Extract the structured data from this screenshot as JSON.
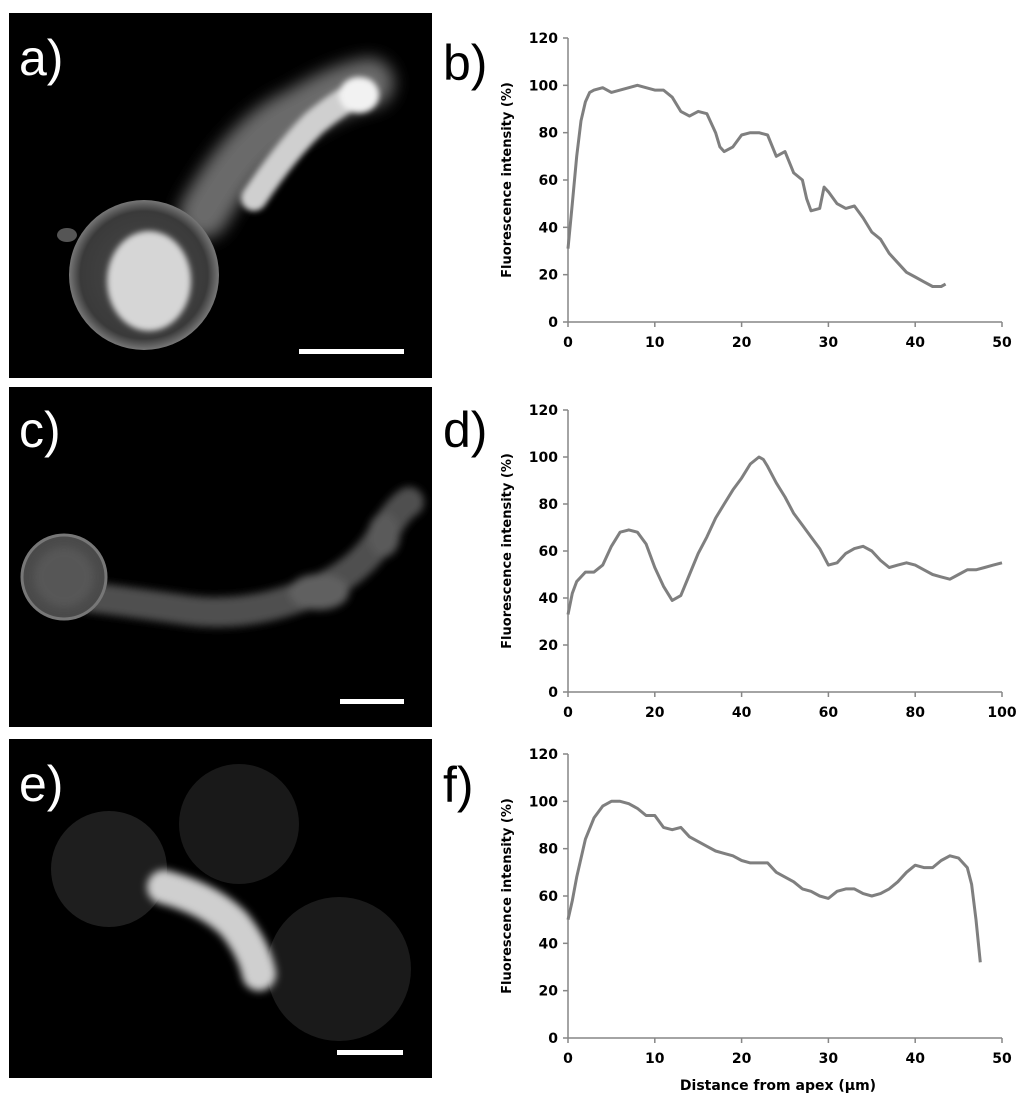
{
  "panels": [
    {
      "label": "a)"
    },
    {
      "label": "b)"
    },
    {
      "label": "c)"
    },
    {
      "label": "d)"
    },
    {
      "label": "e)"
    },
    {
      "label": "f)"
    }
  ],
  "colors": {
    "line": "#7f7f7f",
    "axis": "#868686",
    "image_bg": "#000000"
  },
  "chart_data": [
    {
      "panel": "b)",
      "type": "line",
      "xlabel": "",
      "ylabel": "Fluorescence intensity (%)",
      "xlim": [
        0,
        50
      ],
      "ylim": [
        0,
        120
      ],
      "xticks": [
        "0",
        "10",
        "20",
        "30",
        "40",
        "50"
      ],
      "yticks": [
        "0",
        "20",
        "40",
        "60",
        "80",
        "100",
        "120"
      ],
      "grid": false,
      "series": [
        {
          "x": [
            0,
            0.5,
            1,
            1.5,
            2,
            2.5,
            3,
            4,
            5,
            6,
            7,
            8,
            9,
            10,
            11,
            12,
            13,
            14,
            15,
            16,
            17,
            17.5,
            18,
            19,
            20,
            21,
            22,
            23,
            24,
            25,
            26,
            27,
            27.5,
            28,
            29,
            29.5,
            30,
            31,
            32,
            33,
            34,
            35,
            36,
            37,
            38,
            39,
            40,
            41,
            42,
            43,
            43.5
          ],
          "y": [
            31,
            50,
            70,
            85,
            93,
            97,
            98,
            99,
            97,
            98,
            99,
            100,
            99,
            98,
            98,
            95,
            89,
            87,
            89,
            88,
            80,
            74,
            72,
            74,
            79,
            80,
            80,
            79,
            70,
            72,
            63,
            60,
            52,
            47,
            48,
            57,
            55,
            50,
            48,
            49,
            44,
            38,
            35,
            29,
            25,
            21,
            19,
            17,
            15,
            15,
            16
          ]
        }
      ]
    },
    {
      "panel": "d)",
      "type": "line",
      "xlabel": "",
      "ylabel": "Fluorescence intensity (%)",
      "xlim": [
        0,
        100
      ],
      "ylim": [
        0,
        120
      ],
      "xticks": [
        "0",
        "20",
        "40",
        "60",
        "80",
        "100"
      ],
      "yticks": [
        "0",
        "20",
        "40",
        "60",
        "80",
        "100",
        "120"
      ],
      "grid": false,
      "series": [
        {
          "x": [
            0,
            1,
            2,
            4,
            6,
            8,
            10,
            12,
            14,
            16,
            18,
            20,
            22,
            24,
            26,
            28,
            30,
            32,
            34,
            36,
            38,
            40,
            42,
            44,
            45,
            46,
            48,
            50,
            52,
            54,
            56,
            58,
            60,
            62,
            64,
            66,
            68,
            70,
            72,
            74,
            76,
            78,
            80,
            82,
            84,
            86,
            88,
            90,
            92,
            94,
            96,
            98,
            100
          ],
          "y": [
            33,
            42,
            47,
            51,
            51,
            54,
            62,
            68,
            69,
            68,
            63,
            53,
            45,
            39,
            41,
            50,
            59,
            66,
            74,
            80,
            86,
            91,
            97,
            100,
            99,
            96,
            89,
            83,
            76,
            71,
            66,
            61,
            54,
            55,
            59,
            61,
            62,
            60,
            56,
            53,
            54,
            55,
            54,
            52,
            50,
            49,
            48,
            50,
            52,
            52,
            53,
            54,
            55
          ]
        }
      ]
    },
    {
      "panel": "f)",
      "type": "line",
      "xlabel": "Distance from apex (µm)",
      "ylabel": "Fluorescence intensity (%)",
      "xlim": [
        0,
        50
      ],
      "ylim": [
        0,
        120
      ],
      "xticks": [
        "0",
        "10",
        "20",
        "30",
        "40",
        "50"
      ],
      "yticks": [
        "0",
        "20",
        "40",
        "60",
        "80",
        "100",
        "120"
      ],
      "grid": false,
      "series": [
        {
          "x": [
            0,
            0.5,
            1,
            2,
            3,
            4,
            5,
            6,
            7,
            8,
            9,
            10,
            11,
            12,
            13,
            14,
            15,
            16,
            17,
            18,
            19,
            20,
            21,
            22,
            23,
            24,
            25,
            26,
            27,
            28,
            29,
            30,
            31,
            32,
            33,
            34,
            35,
            36,
            37,
            38,
            39,
            40,
            41,
            42,
            43,
            44,
            45,
            46,
            46.5,
            47,
            47.5
          ],
          "y": [
            50,
            58,
            68,
            84,
            93,
            98,
            100,
            100,
            99,
            97,
            94,
            94,
            89,
            88,
            89,
            85,
            83,
            81,
            79,
            78,
            77,
            75,
            74,
            74,
            74,
            70,
            68,
            66,
            63,
            62,
            60,
            59,
            62,
            63,
            63,
            61,
            60,
            61,
            63,
            66,
            70,
            73,
            72,
            72,
            75,
            77,
            76,
            72,
            65,
            50,
            32
          ]
        }
      ]
    }
  ]
}
